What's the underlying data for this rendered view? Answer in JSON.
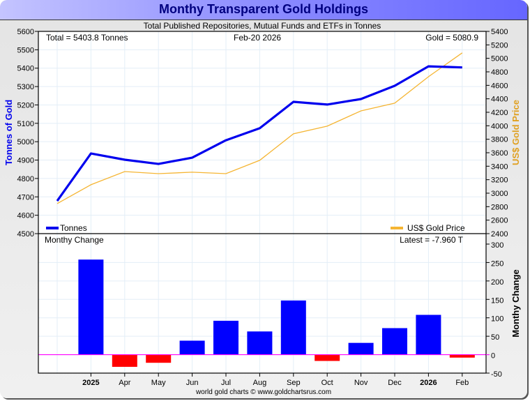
{
  "title": "Monthy Transparent Gold Holdings",
  "subtitle": "Total Published Repositories, Mutual Funds and ETFs in Tonnes",
  "footer": "world gold charts © www.goldchartsrus.com",
  "chart_data": [
    {
      "type": "line",
      "title": "Monthy Transparent Gold Holdings",
      "annotations": {
        "total": "Total = 5403.8 Tonnes",
        "date": "Feb-20  2026",
        "gold": "Gold = 5080.9"
      },
      "ylabel": "Tonnes of Gold",
      "y2label": "US$ Gold Price",
      "ylim": [
        4500,
        5600
      ],
      "y2lim": [
        2400,
        5400
      ],
      "yticks": [
        "5600",
        "5500",
        "5400",
        "5300",
        "5200",
        "5100",
        "5000",
        "4900",
        "4800",
        "4700",
        "4600",
        "4500"
      ],
      "y2ticks": [
        "5400",
        "5200",
        "5000",
        "4800",
        "4600",
        "4400",
        "4200",
        "4000",
        "3800",
        "3600",
        "3400",
        "3200",
        "3000",
        "2800",
        "2600",
        "2400"
      ],
      "legend": [
        "Tonnes",
        "US$ Gold Price"
      ],
      "colors": {
        "tonnes": "#0000ee",
        "gold": "#f5b533"
      },
      "series": [
        {
          "name": "Tonnes",
          "values": [
            4678,
            4936,
            4902,
            4879,
            4913,
            5008,
            5073,
            5217,
            5202,
            5232,
            5304,
            5410,
            5403.8
          ]
        },
        {
          "name": "US$ Gold Price",
          "values": [
            2846,
            3125,
            3321,
            3290,
            3311,
            3290,
            3487,
            3880,
            3994,
            4221,
            4335,
            4728,
            5080.9
          ]
        }
      ]
    },
    {
      "type": "bar",
      "title": "Monthy Change",
      "annotation": "Latest = -7.960 T",
      "ylabel": "Monthy Change",
      "ylim": [
        -50,
        300
      ],
      "yticks": [
        "300",
        "250",
        "200",
        "150",
        "100",
        "50",
        "0",
        "-50"
      ],
      "categories": [
        "2025",
        "Apr",
        "May",
        "Jun",
        "Jul",
        "Aug",
        "Sep",
        "Oct",
        "Nov",
        "Dec",
        "2026",
        "Feb"
      ],
      "bold_categories": [
        "2025",
        "2026"
      ],
      "values": [
        258,
        -33,
        -22,
        38,
        92,
        63,
        147,
        -17,
        32,
        72,
        108,
        -7.96
      ],
      "colors": {
        "positive": "#0000ff",
        "negative": "#ff0000",
        "zero": "#ff00ff"
      }
    }
  ]
}
